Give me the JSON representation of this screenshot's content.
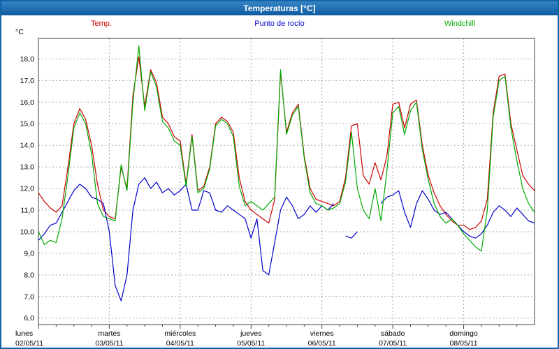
{
  "window": {
    "title": "Temperaturas [°C]"
  },
  "chart_data": {
    "type": "line",
    "title": "Temperaturas [°C]",
    "xlabel": "",
    "ylabel": "°C",
    "ylim": [
      5.7,
      18.95
    ],
    "grid": "dashed horizontal per 1°C and vertical per day",
    "legend_position": "top",
    "x_step_hours": 2,
    "y_ticks": [
      {
        "value": 18,
        "label": "18,0"
      },
      {
        "value": 17,
        "label": "17,0"
      },
      {
        "value": 16,
        "label": "16,0"
      },
      {
        "value": 15,
        "label": "15,0"
      },
      {
        "value": 14,
        "label": "14,0"
      },
      {
        "value": 13,
        "label": "13,0"
      },
      {
        "value": 12,
        "label": "12,0"
      },
      {
        "value": 11,
        "label": "11,0"
      },
      {
        "value": 10,
        "label": "10,0"
      },
      {
        "value": 9,
        "label": "9,0"
      },
      {
        "value": 8,
        "label": "8,0"
      },
      {
        "value": 7,
        "label": "7,0"
      },
      {
        "value": 6,
        "label": "6,0"
      }
    ],
    "days": [
      {
        "name": "lunes",
        "date": "02/05/11"
      },
      {
        "name": "martes",
        "date": "03/05/11"
      },
      {
        "name": "miércoles",
        "date": "04/05/11"
      },
      {
        "name": "jueves",
        "date": "05/05/11"
      },
      {
        "name": "viernes",
        "date": "06/05/11"
      },
      {
        "name": "sábado",
        "date": "07/05/11"
      },
      {
        "name": "domingo",
        "date": "08/05/11"
      }
    ],
    "series": [
      {
        "id": "temp",
        "name": "Temp.",
        "color": "#cc0000",
        "values": [
          11.8,
          11.4,
          11.1,
          10.9,
          11.2,
          13.0,
          15.0,
          15.7,
          15.2,
          14.0,
          12.2,
          11.0,
          10.7,
          10.6,
          13.0,
          12.0,
          16.3,
          18.1,
          15.8,
          17.5,
          16.9,
          15.3,
          15.0,
          14.4,
          14.2,
          12.2,
          14.5,
          11.9,
          12.1,
          13.0,
          15.0,
          15.3,
          15.1,
          14.6,
          12.5,
          11.4,
          11.0,
          10.8,
          10.6,
          10.4,
          11.5,
          17.4,
          14.6,
          15.5,
          15.9,
          13.5,
          12.0,
          11.5,
          11.4,
          11.3,
          11.2,
          11.4,
          12.5,
          14.9,
          15.0,
          12.6,
          12.2,
          13.2,
          12.4,
          13.5,
          15.9,
          16.0,
          14.8,
          15.9,
          16.1,
          14.0,
          12.6,
          11.8,
          11.2,
          10.8,
          10.5,
          10.3,
          10.3,
          10.1,
          10.2,
          10.5,
          11.5,
          15.5,
          17.2,
          17.3,
          15.0,
          13.8,
          12.6,
          12.2,
          11.9
        ]
      },
      {
        "id": "dewpoint",
        "name": "Punto de rocío",
        "color": "#0000cc",
        "values": [
          9.6,
          9.9,
          10.3,
          10.4,
          10.9,
          11.4,
          11.9,
          12.2,
          12.0,
          11.6,
          11.5,
          11.3,
          10.0,
          7.5,
          6.8,
          8.0,
          11.0,
          12.2,
          12.5,
          12.0,
          12.3,
          11.8,
          12.0,
          11.7,
          11.9,
          12.2,
          11.0,
          11.0,
          11.9,
          11.8,
          11.0,
          10.9,
          11.2,
          11.0,
          10.8,
          10.6,
          9.7,
          10.6,
          8.2,
          8.0,
          9.5,
          11.0,
          11.6,
          11.2,
          10.6,
          10.8,
          11.2,
          10.9,
          11.2,
          11.0,
          11.3,
          null,
          9.8,
          9.7,
          10.0,
          null,
          null,
          null,
          11.3,
          11.6,
          11.7,
          11.9,
          10.9,
          10.2,
          11.3,
          11.9,
          11.5,
          11.0,
          10.8,
          10.9,
          10.6,
          10.3,
          10.0,
          9.8,
          9.7,
          9.9,
          10.3,
          10.9,
          11.2,
          11.0,
          10.7,
          11.1,
          10.8,
          10.5,
          10.4
        ]
      },
      {
        "id": "windchill",
        "name": "Windchill",
        "color": "#00aa00",
        "values": [
          10.0,
          9.4,
          9.6,
          9.5,
          10.6,
          12.6,
          14.8,
          15.5,
          15.0,
          13.6,
          11.3,
          10.7,
          10.6,
          10.5,
          13.1,
          11.9,
          16.0,
          18.6,
          15.6,
          17.4,
          16.7,
          15.1,
          14.8,
          14.2,
          14.0,
          12.1,
          14.4,
          11.8,
          12.0,
          12.9,
          14.9,
          15.2,
          15.0,
          14.4,
          12.1,
          11.2,
          11.4,
          11.2,
          11.0,
          11.3,
          11.6,
          17.5,
          14.5,
          15.4,
          15.8,
          13.4,
          11.8,
          11.3,
          11.2,
          11.0,
          11.1,
          11.3,
          12.3,
          14.6,
          12.0,
          11.0,
          10.6,
          12.0,
          10.5,
          12.8,
          15.5,
          15.8,
          14.5,
          15.6,
          16.0,
          13.8,
          12.4,
          11.3,
          10.7,
          10.4,
          10.6,
          10.3,
          9.9,
          9.6,
          9.3,
          9.1,
          11.0,
          15.3,
          17.0,
          17.2,
          14.8,
          13.3,
          12.0,
          11.3,
          10.9
        ]
      }
    ]
  }
}
